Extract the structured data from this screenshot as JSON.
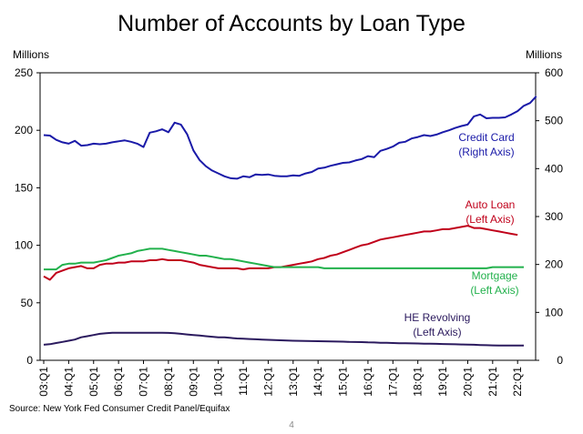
{
  "title": "Number of Accounts by Loan Type",
  "left_unit": "Millions",
  "right_unit": "Millions",
  "source": "Source: New York Fed Consumer Credit Panel/Equifax",
  "page_number": "4",
  "chart_data": {
    "type": "line",
    "title": "Number of Accounts by Loan Type",
    "x_ticks": [
      "03:Q1",
      "04:Q1",
      "05:Q1",
      "06:Q1",
      "07:Q1",
      "08:Q1",
      "09:Q1",
      "10:Q1",
      "11:Q1",
      "12:Q1",
      "13:Q1",
      "14:Q1",
      "15:Q1",
      "16:Q1",
      "17:Q1",
      "18:Q1",
      "19:Q1",
      "20:Q1",
      "21:Q1",
      "22:Q1"
    ],
    "y_left": {
      "label": "Millions",
      "range": [
        0,
        250
      ],
      "ticks": [
        0,
        50,
        100,
        150,
        200,
        250
      ]
    },
    "y_right": {
      "label": "Millions",
      "range": [
        0,
        600
      ],
      "ticks": [
        0,
        100,
        200,
        300,
        400,
        500,
        600
      ]
    },
    "grid": false,
    "series": [
      {
        "name": "Credit Card",
        "label_lines": [
          "Credit Card",
          "(Right Axis)"
        ],
        "axis": "right",
        "color": "#1a1aa8",
        "x_start": "03:Q1",
        "values": [
          470,
          469,
          460,
          455,
          452,
          458,
          448,
          449,
          452,
          451,
          452,
          455,
          457,
          459,
          456,
          452,
          445,
          475,
          478,
          482,
          476,
          496,
          492,
          472,
          438,
          418,
          405,
          396,
          390,
          384,
          380,
          379,
          384,
          382,
          388,
          387,
          388,
          385,
          384,
          384,
          386,
          385,
          390,
          393,
          400,
          402,
          406,
          409,
          412,
          413,
          417,
          420,
          426,
          424,
          437,
          441,
          446,
          454,
          456,
          463,
          466,
          470,
          468,
          471,
          476,
          480,
          485,
          489,
          492,
          509,
          513,
          505,
          506,
          506,
          507,
          513,
          520,
          531,
          537,
          551
        ]
      },
      {
        "name": "Auto Loan",
        "label_lines": [
          "Auto Loan",
          "(Left Axis)"
        ],
        "axis": "left",
        "color": "#c0001a",
        "x_start": "03:Q1",
        "values": [
          73,
          70,
          76,
          78,
          80,
          81,
          82,
          80,
          80,
          83,
          84,
          84,
          85,
          85,
          86,
          86,
          86,
          87,
          87,
          88,
          87,
          87,
          87,
          86,
          85,
          83,
          82,
          81,
          80,
          80,
          80,
          80,
          79,
          80,
          80,
          80,
          80,
          81,
          81,
          82,
          83,
          84,
          85,
          86,
          88,
          89,
          91,
          92,
          94,
          96,
          98,
          100,
          101,
          103,
          105,
          106,
          107,
          108,
          109,
          110,
          111,
          112,
          112,
          113,
          114,
          114,
          115,
          116,
          117,
          115,
          115,
          114,
          113,
          112,
          111,
          110,
          109
        ]
      },
      {
        "name": "Mortgage",
        "label_lines": [
          "Mortgage",
          "(Left Axis)"
        ],
        "axis": "left",
        "color": "#22b14c",
        "x_start": "03:Q1",
        "values": [
          79,
          79,
          79,
          83,
          84,
          84,
          85,
          85,
          85,
          86,
          87,
          89,
          91,
          92,
          93,
          95,
          96,
          97,
          97,
          97,
          96,
          95,
          94,
          93,
          92,
          91,
          91,
          90,
          89,
          88,
          88,
          87,
          86,
          85,
          84,
          83,
          82,
          81,
          81,
          81,
          81,
          81,
          81,
          81,
          81,
          80,
          80,
          80,
          80,
          80,
          80,
          80,
          80,
          80,
          80,
          80,
          80,
          80,
          80,
          80,
          80,
          80,
          80,
          80,
          80,
          80,
          80,
          80,
          80,
          80,
          80,
          80,
          81,
          81,
          81,
          81,
          81,
          81
        ]
      },
      {
        "name": "HE Revolving",
        "label_lines": [
          "HE Revolving",
          "(Left Axis)"
        ],
        "axis": "left",
        "color": "#2b1a5e",
        "x_start": "03:Q1",
        "values": [
          13.5,
          14,
          15,
          16,
          17,
          18,
          20,
          21,
          22,
          23,
          23.5,
          24,
          24,
          24,
          24,
          24,
          24,
          24,
          24,
          24,
          23.8,
          23.5,
          23,
          22.5,
          22,
          21.5,
          21,
          20.5,
          20,
          20,
          19.5,
          19,
          18.8,
          18.5,
          18.3,
          18,
          17.8,
          17.6,
          17.4,
          17.2,
          17,
          16.9,
          16.8,
          16.7,
          16.6,
          16.5,
          16.4,
          16.3,
          16.2,
          16,
          15.9,
          15.8,
          15.6,
          15.5,
          15.3,
          15.2,
          15,
          14.9,
          14.8,
          14.7,
          14.6,
          14.5,
          14.4,
          14.3,
          14.2,
          14,
          13.9,
          13.8,
          13.6,
          13.5,
          13.3,
          13.1,
          13,
          12.9,
          12.8,
          12.8,
          12.8,
          12.8
        ]
      }
    ]
  }
}
